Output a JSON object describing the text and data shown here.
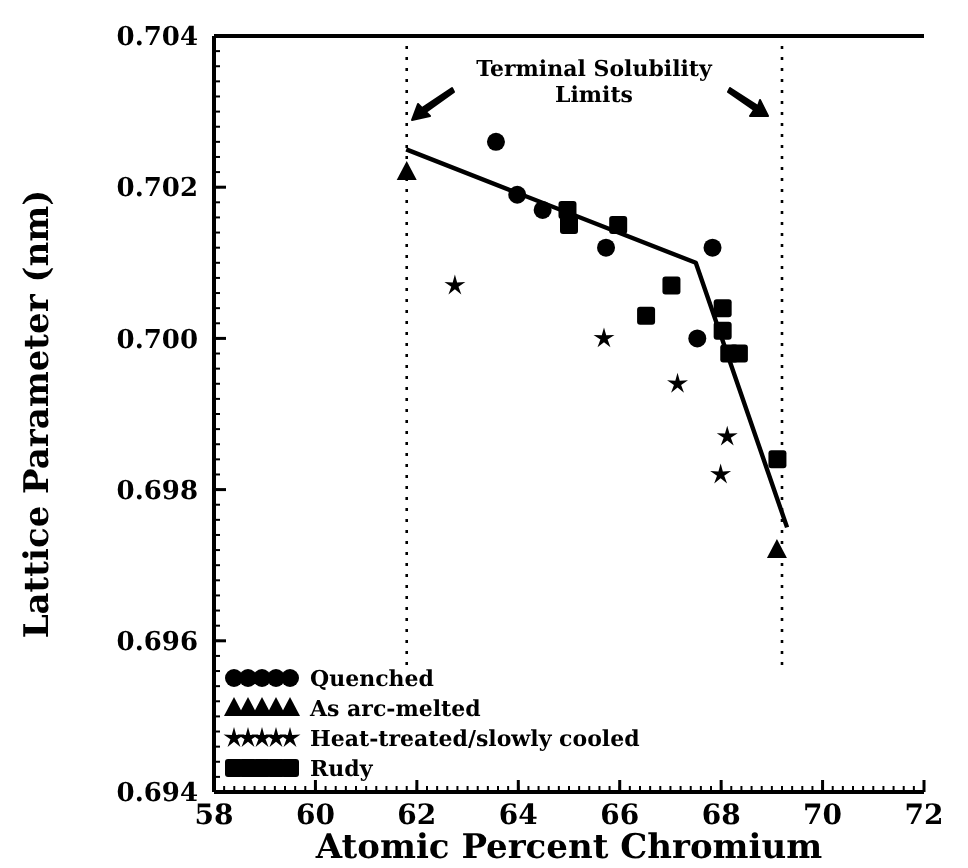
{
  "chart_data": {
    "type": "scatter",
    "xlabel": "Atomic Percent Chromium",
    "ylabel": "Lattice Parameter (nm)",
    "xlim": [
      58,
      72
    ],
    "xticks": [
      58,
      60,
      62,
      64,
      66,
      68,
      70,
      72
    ],
    "ylim": [
      0.694,
      0.704
    ],
    "yticks": [
      {
        "value": 0.694,
        "label": "0.694"
      },
      {
        "value": 0.696,
        "label": "0.696"
      },
      {
        "value": 0.698,
        "label": "0.698"
      },
      {
        "value": 0.7,
        "label": "0.700"
      },
      {
        "value": 0.702,
        "label": "0.702"
      },
      {
        "value": 0.704,
        "label": "0.704"
      }
    ],
    "legend": "bottom left",
    "grid": false,
    "annotations": [
      "Terminal Solubility Limits"
    ],
    "ref_lines": [
      {
        "axis": "x",
        "value": 61.8,
        "line_style": "dotted"
      },
      {
        "axis": "x",
        "value": 69.2,
        "line_style": "dotted"
      }
    ],
    "series": [
      {
        "name": "Quenched",
        "color": "#000000",
        "marker": "circle",
        "x": [
          63.56,
          63.98,
          64.48,
          65.73,
          67.83,
          67.53
        ],
        "values": [
          0.7026,
          0.7019,
          0.7017,
          0.7012,
          0.7012,
          0.7
        ]
      },
      {
        "name": "As arc-melted",
        "color": "#000000",
        "marker": "triangle",
        "x": [
          61.8,
          69.1
        ],
        "values": [
          0.7022,
          0.6972
        ]
      },
      {
        "name": "Heat-treated/slowly cooled",
        "color": "#000000",
        "marker": "star",
        "x": [
          62.75,
          65.69,
          67.14,
          68.12,
          67.99
        ],
        "values": [
          0.7007,
          0.7,
          0.6994,
          0.6987,
          0.6982
        ]
      },
      {
        "name": "Rudy",
        "color": "#000000",
        "marker": "square",
        "x": [
          64.97,
          65.0,
          65.97,
          67.02,
          66.52,
          68.03,
          68.03,
          68.16,
          68.35,
          69.11
        ],
        "values": [
          0.7017,
          0.7015,
          0.7015,
          0.7007,
          0.7003,
          0.7004,
          0.7001,
          0.6998,
          0.6998,
          0.6984
        ]
      },
      {
        "type": "line",
        "color": "#000000",
        "x": [
          61.79,
          67.5,
          69.3
        ],
        "values": [
          0.7025,
          0.701,
          0.6975
        ]
      }
    ]
  }
}
